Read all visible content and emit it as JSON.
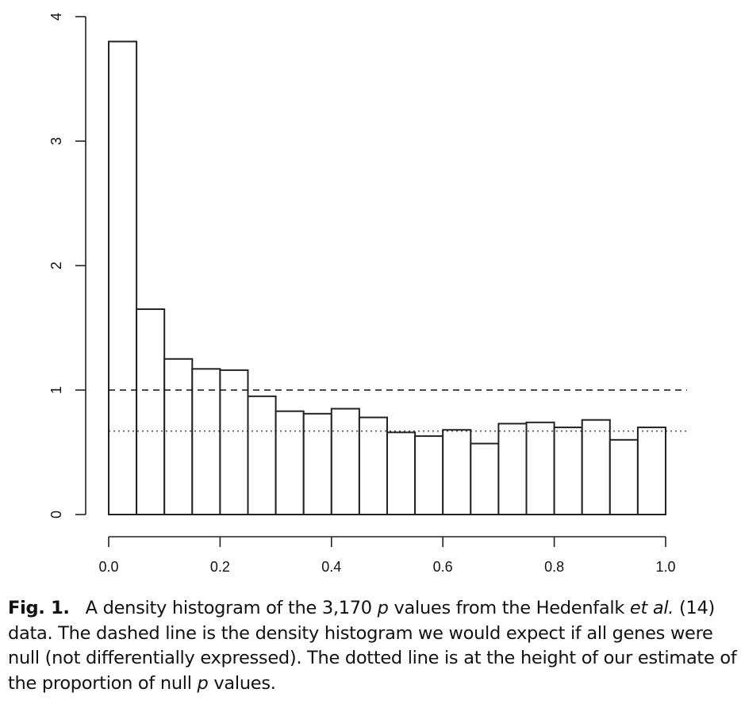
{
  "chart_data": {
    "type": "bar",
    "bin_edges": [
      0.0,
      0.05,
      0.1,
      0.15,
      0.2,
      0.25,
      0.3,
      0.35,
      0.4,
      0.45,
      0.5,
      0.55,
      0.6,
      0.65,
      0.7,
      0.75,
      0.8,
      0.85,
      0.9,
      0.95,
      1.0
    ],
    "values": [
      3.8,
      1.65,
      1.25,
      1.17,
      1.16,
      0.95,
      0.83,
      0.81,
      0.85,
      0.78,
      0.66,
      0.63,
      0.68,
      0.57,
      0.73,
      0.74,
      0.7,
      0.76,
      0.6,
      0.7
    ],
    "xlim": [
      0,
      1
    ],
    "ylim": [
      0,
      4
    ],
    "x_ticks": [
      0.0,
      0.2,
      0.4,
      0.6,
      0.8,
      1.0
    ],
    "x_tick_labels": [
      "0.0",
      "0.2",
      "0.4",
      "0.6",
      "0.8",
      "1.0"
    ],
    "y_ticks": [
      0,
      1,
      2,
      3,
      4
    ],
    "y_tick_labels": [
      "0",
      "1",
      "2",
      "3",
      "4"
    ],
    "reference_lines": [
      {
        "style": "dashed",
        "y": 1.0
      },
      {
        "style": "dotted",
        "y": 0.67
      }
    ],
    "grid": false,
    "colors": {
      "bar_fill": "#ffffff",
      "bar_stroke": "#222222",
      "axis": "#222222"
    }
  },
  "caption": {
    "label": "Fig. 1.",
    "part1": "A density histogram of the 3,170 ",
    "p1": "p",
    "part2": " values from the Hedenfalk ",
    "etal": "et al.",
    "part3": " (14) data. The dashed line is the density histogram we would expect if all genes were null (not differentially expressed). The dotted line is at the height of our estimate of the proportion of null ",
    "p2": "p",
    "part4": " values."
  }
}
